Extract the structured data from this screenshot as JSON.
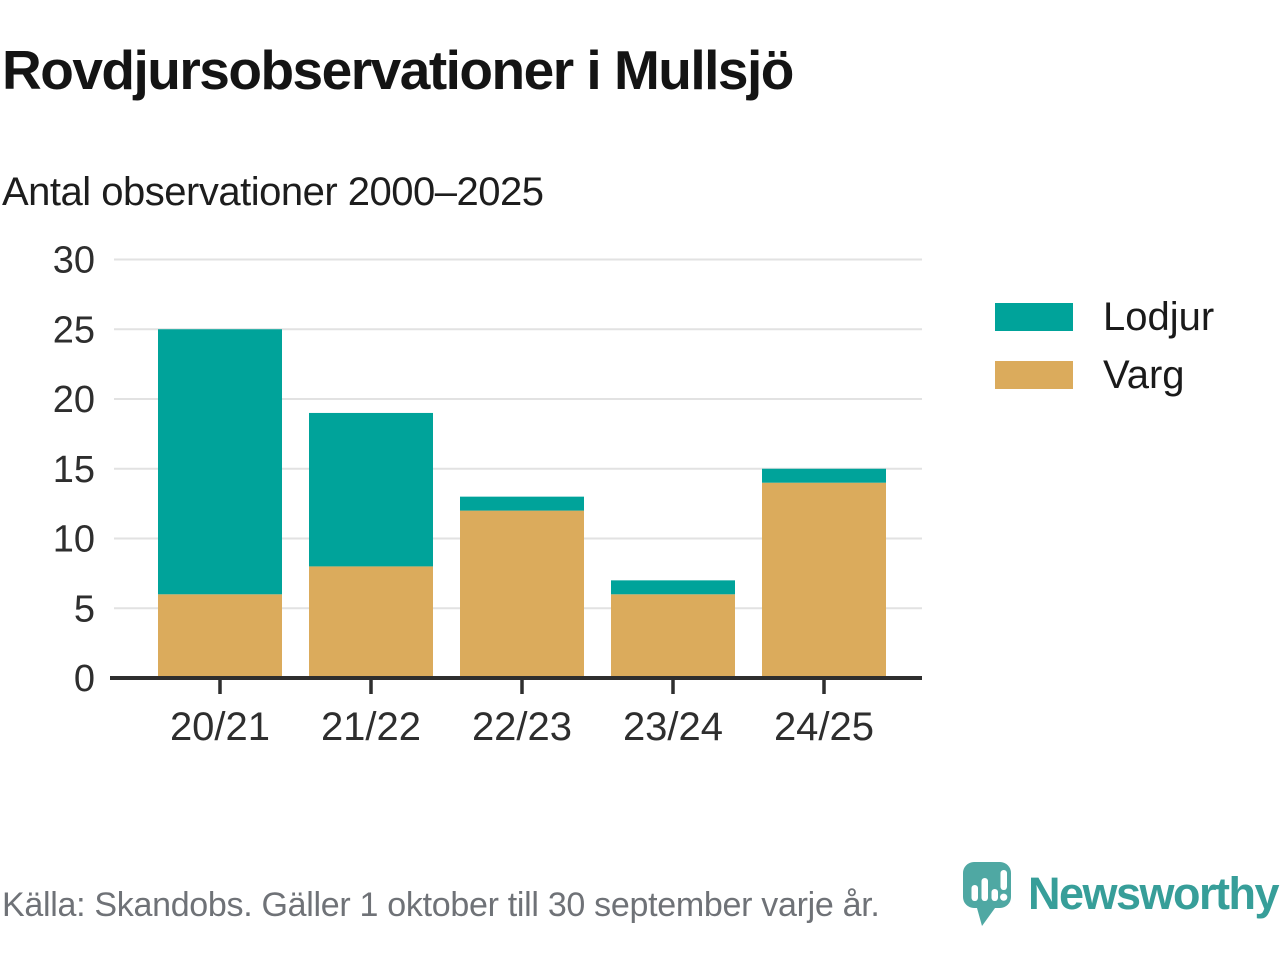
{
  "page": {
    "title": "Rovdjursobservationer i Mullsjö",
    "subtitle": "Antal observationer 2000–2025",
    "source_note": "Källa: Skandobs. Gäller 1 oktober till 30 september varje år.",
    "brand_name": "Newsworthy"
  },
  "legend": {
    "items": [
      {
        "label": "Lodjur",
        "color": "#00a39a"
      },
      {
        "label": "Varg",
        "color": "#dbab5c"
      }
    ]
  },
  "chart_data": {
    "type": "bar",
    "stacked": true,
    "title": "Rovdjursobservationer i Mullsjö",
    "subtitle": "Antal observationer 2000–2025",
    "categories": [
      "20/21",
      "21/22",
      "22/23",
      "23/24",
      "24/25"
    ],
    "series": [
      {
        "name": "Varg",
        "color": "#dbab5c",
        "values": [
          6,
          8,
          12,
          6,
          14
        ]
      },
      {
        "name": "Lodjur",
        "color": "#00a39a",
        "values": [
          19,
          11,
          1,
          1,
          1
        ]
      }
    ],
    "stack_totals": [
      25,
      19,
      13,
      7,
      15
    ],
    "xlabel": "",
    "ylabel": "Antal observationer",
    "ylim": [
      0,
      30
    ],
    "yticks": [
      0,
      5,
      10,
      15,
      20,
      25,
      30
    ],
    "grid": true,
    "legend_position": "right",
    "source": "Källa: Skandobs. Gäller 1 oktober till 30 september varje år."
  },
  "colors": {
    "lodjur": "#00a39a",
    "varg": "#dbab5c",
    "gridline": "#e2e2e2",
    "axis": "#2e2e2e",
    "brand_icon": "#4fa8a3",
    "brand_text": "#379e99",
    "source_text": "#6f7277"
  }
}
